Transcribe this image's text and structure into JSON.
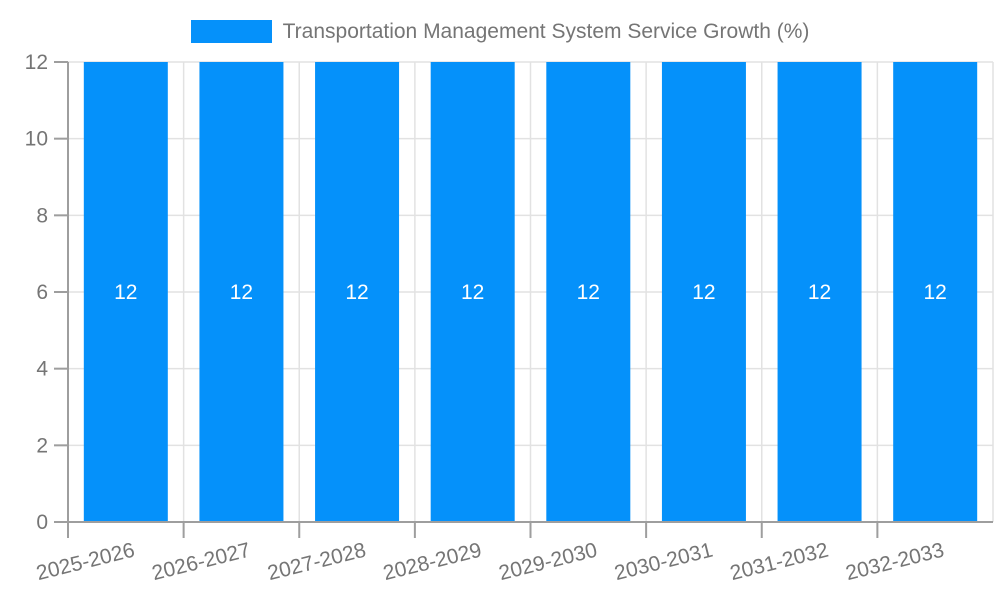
{
  "chart_data": {
    "type": "bar",
    "title": "Transportation Management System Service Growth (%)",
    "categories": [
      "2025-2026",
      "2026-2027",
      "2027-2028",
      "2028-2029",
      "2029-2030",
      "2030-2031",
      "2031-2032",
      "2032-2033"
    ],
    "series": [
      {
        "name": "Transportation Management System Service Growth (%)",
        "values": [
          12,
          12,
          12,
          12,
          12,
          12,
          12,
          12
        ]
      }
    ],
    "bar_value_labels": [
      "12",
      "12",
      "12",
      "12",
      "12",
      "12",
      "12",
      "12"
    ],
    "xlabel": "",
    "ylabel": "",
    "ylim": [
      0,
      12
    ],
    "yticks": [
      0,
      2,
      4,
      6,
      8,
      10,
      12
    ],
    "ytick_labels": [
      "0",
      "2",
      "4",
      "6",
      "8",
      "10",
      "12"
    ],
    "grid": true,
    "legend_position": "top",
    "x_label_rotation_deg": -14,
    "colors": {
      "bar": "#0591FA",
      "grid": "#E2E2E2",
      "axis": "#9E9E9E",
      "text": "#757575",
      "bar_label": "#FFFFFF",
      "background": "#FFFFFF"
    }
  }
}
